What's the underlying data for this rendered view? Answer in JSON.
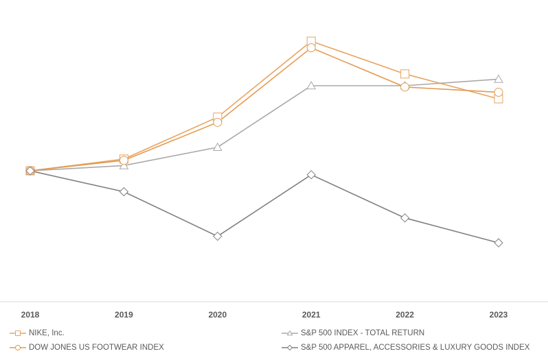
{
  "chart_data": {
    "type": "line",
    "categories": [
      "2018",
      "2019",
      "2020",
      "2021",
      "2022",
      "2023"
    ],
    "ylim": [
      0,
      220
    ],
    "series": [
      {
        "name": "NIKE, Inc.",
        "color": "#e9a35f",
        "marker": "square",
        "values": [
          100,
          109,
          141,
          199,
          174,
          155
        ]
      },
      {
        "name": "S&P 500 INDEX - TOTAL RETURN",
        "color": "#a9a9a9",
        "marker": "triangle",
        "values": [
          100,
          104,
          118,
          165,
          165,
          170
        ]
      },
      {
        "name": "DOW JONES US FOOTWEAR INDEX",
        "color": "#e39a50",
        "marker": "circle",
        "values": [
          100,
          108,
          137,
          194,
          164,
          160
        ]
      },
      {
        "name": "S&P 500 APPAREL, ACCESSORIES & LUXURY GOODS INDEX",
        "color": "#7f7f7f",
        "marker": "diamond",
        "values": [
          100,
          84,
          50,
          97,
          64,
          45
        ]
      }
    ]
  }
}
